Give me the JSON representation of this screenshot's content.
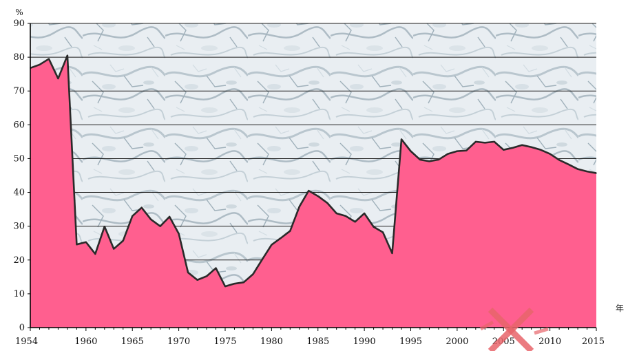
{
  "chart_data": {
    "type": "area",
    "title": "",
    "ylabel": "%",
    "xlabel": "年",
    "xlim": [
      1954,
      2015
    ],
    "ylim": [
      0,
      90
    ],
    "x_ticks": [
      "1954",
      "1960",
      "1965",
      "1970",
      "1975",
      "1980",
      "1985",
      "1990",
      "1995",
      "2000",
      "2005",
      "2010",
      "2015"
    ],
    "y_ticks": [
      "0",
      "10",
      "20",
      "30",
      "40",
      "50",
      "60",
      "70",
      "80",
      "90"
    ],
    "grid": true,
    "series": [
      {
        "name": "",
        "color": "#ff5f8f",
        "x": [
          1954,
          1955,
          1956,
          1957,
          1958,
          1959,
          1960,
          1961,
          1962,
          1963,
          1964,
          1965,
          1966,
          1967,
          1968,
          1969,
          1970,
          1971,
          1972,
          1973,
          1974,
          1975,
          1976,
          1977,
          1978,
          1979,
          1980,
          1981,
          1982,
          1983,
          1984,
          1985,
          1986,
          1987,
          1988,
          1989,
          1990,
          1991,
          1992,
          1993,
          1994,
          1995,
          1996,
          1997,
          1998,
          1999,
          2000,
          2001,
          2002,
          2003,
          2004,
          2005,
          2006,
          2007,
          2008,
          2009,
          2010,
          2011,
          2012,
          2013,
          2014,
          2015
        ],
        "values": [
          76.8,
          77.8,
          79.5,
          73.7,
          80.5,
          24.6,
          25.3,
          21.8,
          29.9,
          23.3,
          25.7,
          33.0,
          35.5,
          32.0,
          30.0,
          32.8,
          27.8,
          16.3,
          14.1,
          15.2,
          17.6,
          12.2,
          13.0,
          13.4,
          15.8,
          20.2,
          24.5,
          26.5,
          28.6,
          35.8,
          40.5,
          38.9,
          36.9,
          33.8,
          33.0,
          31.3,
          33.8,
          29.8,
          28.2,
          22.0,
          55.7,
          52.2,
          49.7,
          49.2,
          49.7,
          51.4,
          52.2,
          52.4,
          55.0,
          54.7,
          55.0,
          52.6,
          53.2,
          54.0,
          53.4,
          52.6,
          51.4,
          49.6,
          48.3,
          46.9,
          46.2,
          45.7
        ]
      }
    ],
    "plot_background": "marble-texture",
    "colors": {
      "area_fill": "#ff5f8f",
      "area_outline": "#2a2a2a",
      "grid": "#1a1a1a",
      "axis": "#000000",
      "text": "#111111",
      "watermark": "#e8656b"
    }
  }
}
